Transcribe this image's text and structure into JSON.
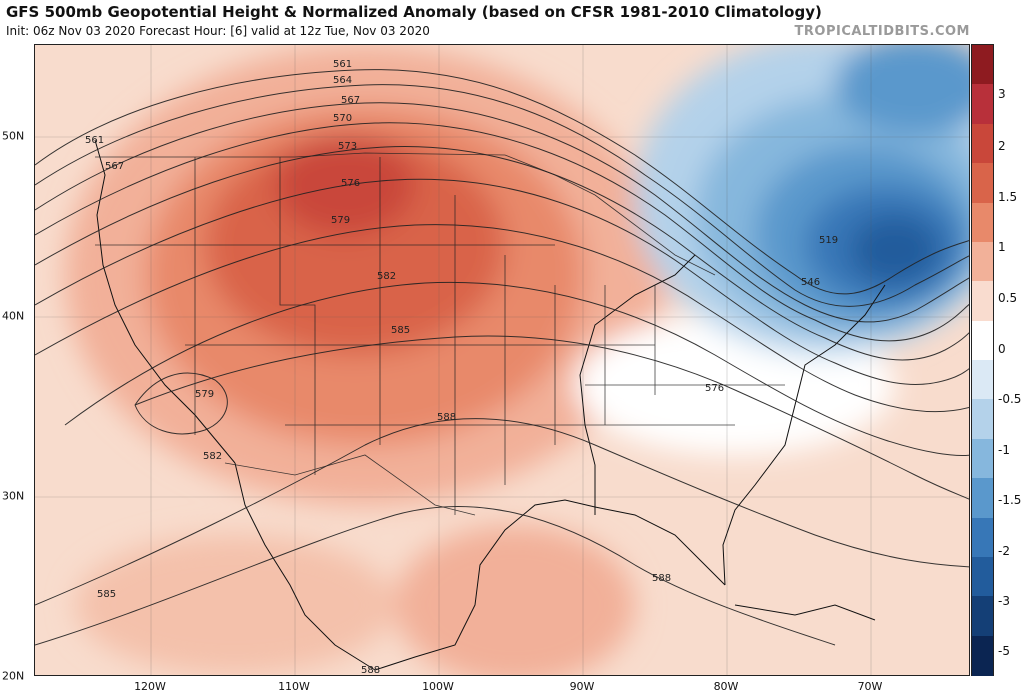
{
  "header": {
    "title": "GFS 500mb Geopotential Height & Normalized Anomaly (based on CFSR 1981-2010 Climatology)",
    "subtitle": "Init: 06z Nov 03 2020   Forecast Hour: [6]   valid at 12z Tue, Nov 03 2020",
    "brand": "TROPICALTIDBITS.COM"
  },
  "axes": {
    "lat_labels": [
      "50N",
      "40N",
      "30N",
      "20N"
    ],
    "lon_labels": [
      "120W",
      "110W",
      "100W",
      "90W",
      "80W",
      "70W"
    ]
  },
  "colorbar": {
    "labels": [
      "3",
      "2",
      "1.5",
      "1",
      "0.5",
      "0",
      "-0.5",
      "-1",
      "-1.5",
      "-2",
      "-3",
      "-5"
    ],
    "colors": [
      "#8e1b20",
      "#b8303a",
      "#c9473a",
      "#d9644a",
      "#e8896a",
      "#f2b199",
      "#f9dccf",
      "#ffffff",
      "#dbe9f5",
      "#b4d2ea",
      "#86b7dd",
      "#5a98cc",
      "#3777b7",
      "#225c9c",
      "#143f76",
      "#0b2552"
    ]
  },
  "contour_labels": [
    "561",
    "561",
    "564",
    "567",
    "567",
    "570",
    "573",
    "576",
    "579",
    "579",
    "582",
    "582",
    "585",
    "585",
    "588",
    "588",
    "588",
    "576",
    "546",
    "519"
  ]
}
